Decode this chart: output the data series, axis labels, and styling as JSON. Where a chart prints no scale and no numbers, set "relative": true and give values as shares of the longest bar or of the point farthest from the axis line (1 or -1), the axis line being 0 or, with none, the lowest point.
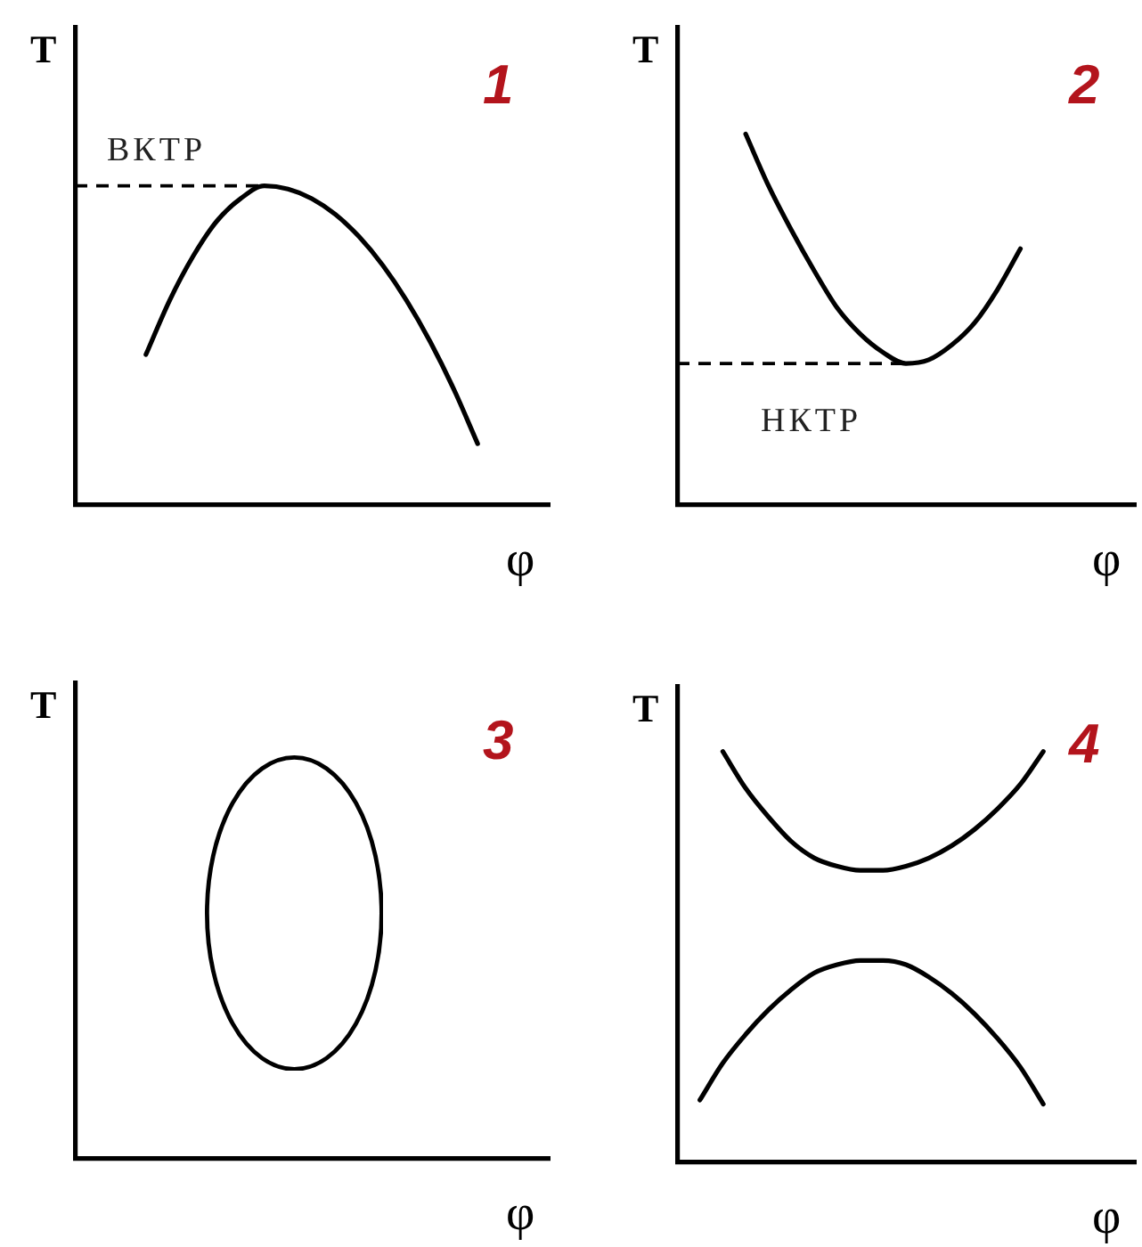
{
  "chart_data": [
    {
      "type": "line",
      "title": "1",
      "xlabel": "φ",
      "ylabel": "T",
      "relative": true,
      "categories": [
        null,
        null,
        null,
        null,
        null,
        null,
        null,
        null,
        null,
        null,
        null,
        null,
        null,
        null,
        null,
        null,
        null,
        null,
        null,
        null,
        null
      ],
      "series": [
        {
          "color": "#000000",
          "values": [
            null,
            null,
            null,
            0.47,
            0.64,
            0.78,
            0.89,
            0.96,
            1,
            0.99,
            0.96,
            0.91,
            0.84,
            0.75,
            0.64,
            0.51,
            0.36,
            0.19,
            null,
            null,
            null
          ]
        }
      ],
      "ref_lines": [
        {
          "axis": "y",
          "value": 1,
          "label": "ВКТР",
          "color": "#000000",
          "line_style": "dashed"
        }
      ]
    },
    {
      "type": "line",
      "title": "2",
      "xlabel": "φ",
      "ylabel": "T",
      "relative": true,
      "categories": [
        null,
        null,
        null,
        null,
        null,
        null,
        null,
        null,
        null,
        null,
        null,
        null,
        null,
        null,
        null,
        null,
        null,
        null,
        null,
        null,
        null
      ],
      "series": [
        {
          "color": "#000000",
          "values": [
            null,
            null,
            null,
            1,
            0.86,
            0.74,
            0.63,
            0.53,
            0.46,
            0.41,
            0.38,
            0.39,
            0.43,
            0.49,
            0.58,
            0.69,
            null,
            null,
            null,
            null,
            null
          ]
        }
      ],
      "ref_lines": [
        {
          "axis": "y",
          "value": 0.38,
          "label": "НКТР",
          "color": "#000000",
          "line_style": "dashed"
        }
      ]
    },
    {
      "type": "other",
      "title": "3",
      "xlabel": "φ",
      "ylabel": "T"
    },
    {
      "type": "line",
      "title": "4",
      "xlabel": "φ",
      "ylabel": "T",
      "relative": true,
      "categories": [
        null,
        null,
        null,
        null,
        null,
        null,
        null,
        null,
        null,
        null,
        null,
        null,
        null,
        null,
        null,
        null,
        null,
        null,
        null,
        null,
        null
      ],
      "series": [
        {
          "color": "#000000",
          "values": [
            null,
            null,
            1,
            0.91,
            0.84,
            0.78,
            0.74,
            0.72,
            0.71,
            0.71,
            0.72,
            0.74,
            0.77,
            0.81,
            0.86,
            0.92,
            1,
            null,
            null,
            null,
            null
          ]
        },
        {
          "color": "#000000",
          "values": [
            null,
            0.15,
            0.24,
            0.31,
            0.37,
            0.42,
            0.46,
            0.48,
            0.49,
            0.49,
            0.48,
            0.45,
            0.41,
            0.36,
            0.3,
            0.23,
            0.14,
            null,
            null,
            null,
            null
          ]
        }
      ]
    }
  ]
}
